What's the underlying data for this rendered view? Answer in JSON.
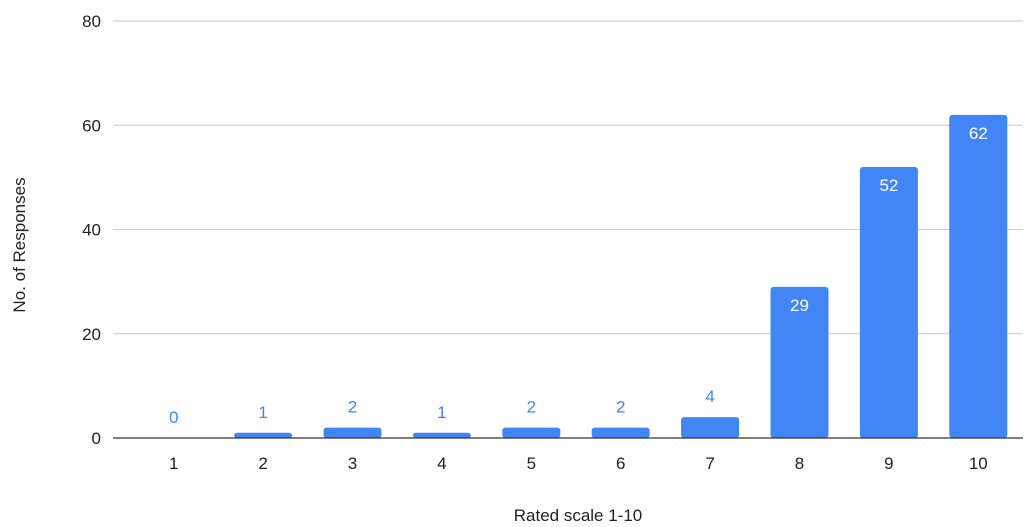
{
  "chart_data": {
    "type": "bar",
    "categories": [
      "1",
      "2",
      "3",
      "4",
      "5",
      "6",
      "7",
      "8",
      "9",
      "10"
    ],
    "values": [
      0,
      1,
      2,
      1,
      2,
      2,
      4,
      29,
      52,
      62
    ],
    "title": "",
    "xlabel": "Rated scale 1-10",
    "ylabel": "No. of Responses",
    "ylim": [
      0,
      80
    ],
    "yticks": [
      0,
      20,
      40,
      60,
      80
    ],
    "grid": true,
    "legend": "none",
    "bar_color": "#4285f4",
    "inside_label_color": "#ffffff",
    "outside_label_color": "#4285f4"
  }
}
